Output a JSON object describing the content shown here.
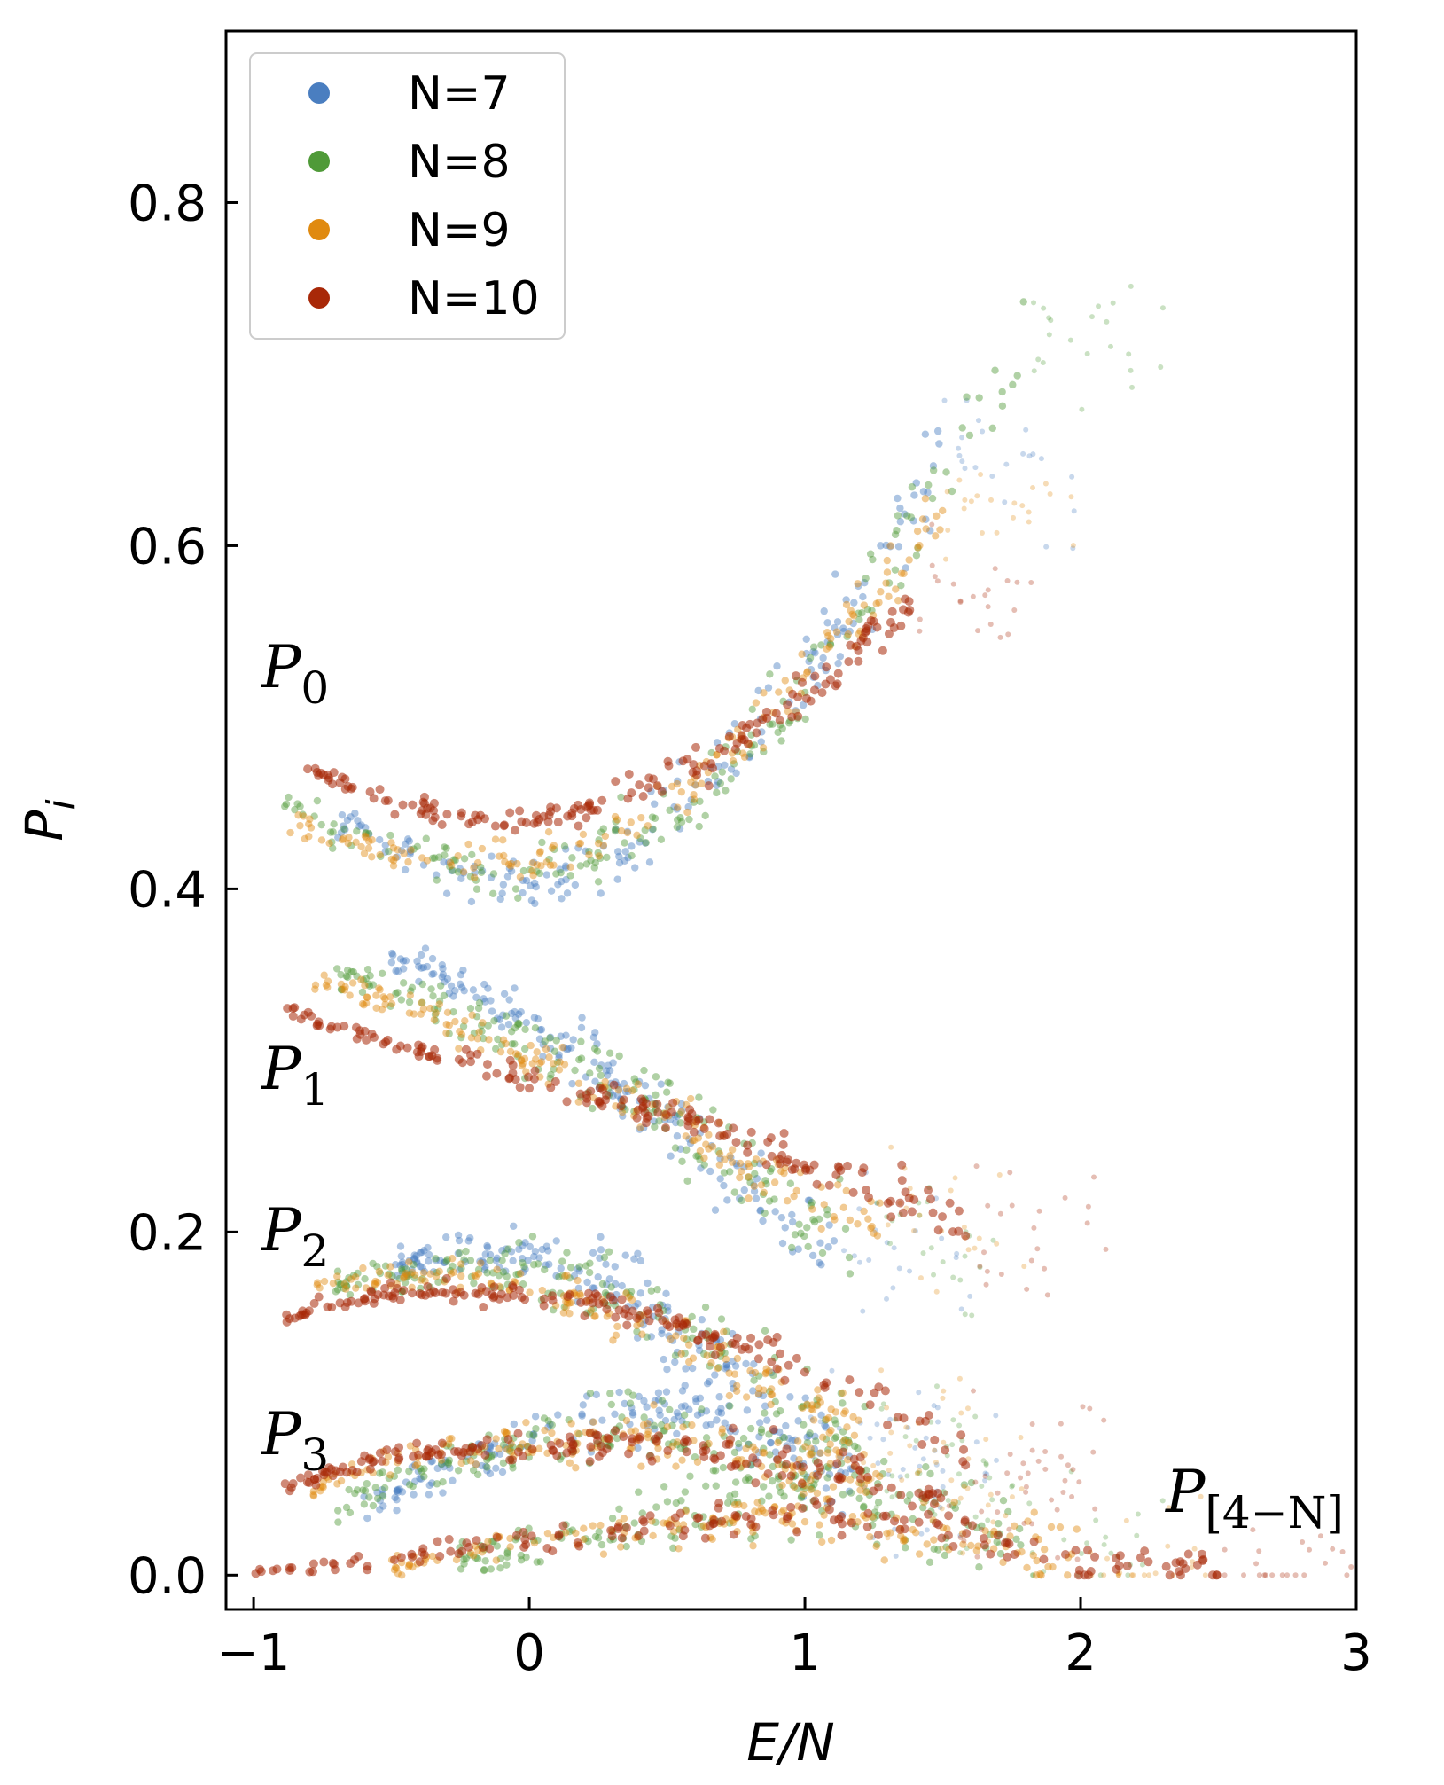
{
  "chart_data": {
    "type": "scatter",
    "xlabel": "E/N",
    "ylabel": "P_i",
    "xlim": [
      -1.1,
      3.0
    ],
    "ylim": [
      -0.02,
      0.9
    ],
    "x_ticks": [
      {
        "value": -1,
        "label": "−1"
      },
      {
        "value": 0,
        "label": "0"
      },
      {
        "value": 1,
        "label": "1"
      },
      {
        "value": 2,
        "label": "2"
      },
      {
        "value": 3,
        "label": "3"
      }
    ],
    "y_ticks": [
      {
        "value": 0.0,
        "label": "0.0"
      },
      {
        "value": 0.2,
        "label": "0.2"
      },
      {
        "value": 0.4,
        "label": "0.4"
      },
      {
        "value": 0.6,
        "label": "0.6"
      },
      {
        "value": 0.8,
        "label": "0.8"
      }
    ],
    "legend": {
      "placement": "top-left"
    },
    "series": [
      {
        "name": "N=7",
        "color": "#4a7ec0"
      },
      {
        "name": "N=8",
        "color": "#4f9a38"
      },
      {
        "name": "N=9",
        "color": "#e08a10"
      },
      {
        "name": "N=10",
        "color": "#a82808"
      }
    ],
    "bands": [
      {
        "id": "P0",
        "points": [
          {
            "series": "N=7",
            "x": [
              -0.7,
              -0.3,
              0.0,
              0.3,
              0.6,
              0.9,
              1.2,
              1.5
            ],
            "y": [
              0.44,
              0.41,
              0.4,
              0.42,
              0.46,
              0.51,
              0.57,
              0.65
            ]
          },
          {
            "series": "N=8",
            "x": [
              -0.9,
              -0.5,
              0.0,
              0.3,
              0.6,
              0.9,
              1.2,
              1.5,
              1.8
            ],
            "y": [
              0.45,
              0.42,
              0.41,
              0.425,
              0.45,
              0.5,
              0.56,
              0.64,
              0.72
            ]
          },
          {
            "series": "N=9",
            "x": [
              -0.9,
              -0.5,
              0.0,
              0.3,
              0.6,
              0.9,
              1.2,
              1.5
            ],
            "y": [
              0.44,
              0.42,
              0.415,
              0.43,
              0.46,
              0.51,
              0.56,
              0.62
            ]
          },
          {
            "series": "N=10",
            "x": [
              -0.8,
              -0.5,
              -0.2,
              0.0,
              0.3,
              0.6,
              0.9,
              1.2,
              1.4
            ],
            "y": [
              0.47,
              0.45,
              0.44,
              0.44,
              0.45,
              0.47,
              0.5,
              0.54,
              0.57
            ]
          }
        ]
      },
      {
        "id": "P1",
        "points": [
          {
            "series": "N=7",
            "x": [
              -0.5,
              -0.2,
              0.2,
              0.5,
              0.8,
              1.1
            ],
            "y": [
              0.36,
              0.34,
              0.3,
              0.26,
              0.22,
              0.19
            ]
          },
          {
            "series": "N=8",
            "x": [
              -0.7,
              -0.3,
              0.1,
              0.5,
              0.9,
              1.2
            ],
            "y": [
              0.35,
              0.33,
              0.3,
              0.27,
              0.22,
              0.19
            ]
          },
          {
            "series": "N=9",
            "x": [
              -0.8,
              -0.4,
              0.0,
              0.5,
              0.9,
              1.3
            ],
            "y": [
              0.35,
              0.33,
              0.3,
              0.27,
              0.23,
              0.2
            ]
          },
          {
            "series": "N=10",
            "x": [
              -0.9,
              -0.5,
              0.0,
              0.5,
              1.0,
              1.4,
              1.6
            ],
            "y": [
              0.33,
              0.31,
              0.29,
              0.27,
              0.24,
              0.22,
              0.2
            ]
          }
        ]
      },
      {
        "id": "P2",
        "points": [
          {
            "series": "N=7",
            "x": [
              -0.5,
              -0.2,
              0.1,
              0.4,
              0.7,
              1.0
            ],
            "y": [
              0.18,
              0.19,
              0.185,
              0.16,
              0.12,
              0.08
            ]
          },
          {
            "series": "N=8",
            "x": [
              -0.7,
              -0.3,
              0.1,
              0.5,
              0.9,
              1.2
            ],
            "y": [
              0.17,
              0.18,
              0.175,
              0.15,
              0.11,
              0.07
            ]
          },
          {
            "series": "N=9",
            "x": [
              -0.8,
              -0.4,
              0.0,
              0.4,
              0.8,
              1.2
            ],
            "y": [
              0.17,
              0.175,
              0.17,
              0.15,
              0.12,
              0.08
            ]
          },
          {
            "series": "N=10",
            "x": [
              -0.9,
              -0.5,
              0.0,
              0.5,
              1.0,
              1.5,
              1.6
            ],
            "y": [
              0.15,
              0.165,
              0.165,
              0.15,
              0.12,
              0.08,
              0.07
            ]
          }
        ]
      },
      {
        "id": "P3",
        "points": [
          {
            "series": "N=7",
            "x": [
              -0.6,
              -0.2,
              0.2,
              0.5,
              0.9,
              1.2
            ],
            "y": [
              0.04,
              0.07,
              0.09,
              0.095,
              0.08,
              0.06
            ]
          },
          {
            "series": "N=8",
            "x": [
              -0.7,
              -0.3,
              0.1,
              0.5,
              0.9,
              1.3
            ],
            "y": [
              0.04,
              0.065,
              0.08,
              0.085,
              0.07,
              0.05
            ]
          },
          {
            "series": "N=9",
            "x": [
              -0.8,
              -0.4,
              0.0,
              0.4,
              0.8,
              1.3
            ],
            "y": [
              0.05,
              0.07,
              0.08,
              0.08,
              0.07,
              0.05
            ]
          },
          {
            "series": "N=10",
            "x": [
              -0.9,
              -0.5,
              0.0,
              0.5,
              1.0,
              1.5
            ],
            "y": [
              0.05,
              0.07,
              0.075,
              0.075,
              0.065,
              0.045
            ]
          }
        ]
      },
      {
        "id": "P4N",
        "points": [
          {
            "series": "N=8",
            "x": [
              -0.3,
              0.2,
              0.6,
              1.0,
              1.4,
              1.8
            ],
            "y": [
              0.01,
              0.02,
              0.04,
              0.05,
              0.04,
              0.02
            ]
          },
          {
            "series": "N=9",
            "x": [
              -0.5,
              0.0,
              0.5,
              1.0,
              1.5,
              2.0
            ],
            "y": [
              0.005,
              0.02,
              0.03,
              0.035,
              0.025,
              0.01
            ]
          },
          {
            "series": "N=10",
            "x": [
              -1.0,
              -0.5,
              0.0,
              0.5,
              1.0,
              1.5,
              2.0,
              2.5
            ],
            "y": [
              0.0,
              0.01,
              0.02,
              0.03,
              0.035,
              0.03,
              0.01,
              0.0
            ]
          }
        ]
      }
    ],
    "annotations": [
      {
        "id": "P0",
        "main": "P",
        "sub": "0"
      },
      {
        "id": "P1",
        "main": "P",
        "sub": "1"
      },
      {
        "id": "P2",
        "main": "P",
        "sub": "2"
      },
      {
        "id": "P3",
        "main": "P",
        "sub": "3"
      },
      {
        "id": "P4N",
        "main": "P",
        "sub": "[4−N]"
      }
    ]
  }
}
